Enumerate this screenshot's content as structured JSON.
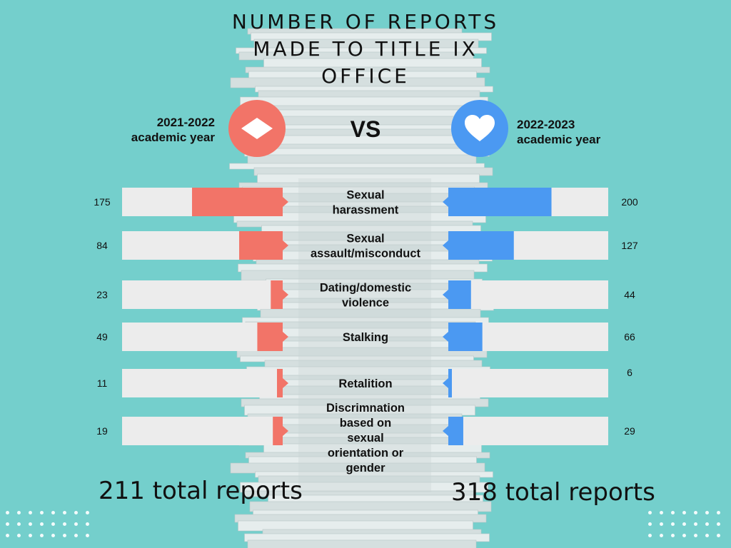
{
  "title": "NUMBER OF REPORTS MADE TO TITLE IX OFFICE",
  "title_lines": [
    "NUMBER OF REPORTS",
    "MADE TO TITLE IX",
    "OFFICE"
  ],
  "left_year": {
    "line1": "2021-2022",
    "line2": "academic year"
  },
  "right_year": {
    "line1": "2022-2023",
    "line2": "academic year"
  },
  "vs_label": "VS",
  "left_total": "211 total reports",
  "right_total": "318 total reports",
  "icons": {
    "left": "diamond-icon",
    "right": "heart-icon"
  },
  "colors": {
    "background": "#74cfcc",
    "left_series": "#f27468",
    "right_series": "#4b99f2",
    "track": "#ececec"
  },
  "chart_data": {
    "type": "bar",
    "categories": [
      "Sexual harassment",
      "Sexual assault/misconduct",
      "Dating/domestic violence",
      "Stalking",
      "Retalition",
      "Discrimnation based on sexual orientation or gender"
    ],
    "category_lines": [
      [
        "Sexual",
        "harassment"
      ],
      [
        "Sexual",
        "assault/misconduct"
      ],
      [
        "Dating/domestic",
        "violence"
      ],
      [
        "Stalking"
      ],
      [
        "Retalition"
      ],
      [
        "Discrimnation",
        "based on",
        "sexual",
        "orientation or",
        "gender"
      ]
    ],
    "series": [
      {
        "name": "2021-2022 academic year",
        "values": [
          175,
          84,
          23,
          49,
          11,
          19
        ]
      },
      {
        "name": "2022-2023 academic year",
        "values": [
          200,
          127,
          44,
          66,
          6,
          29
        ]
      }
    ]
  }
}
